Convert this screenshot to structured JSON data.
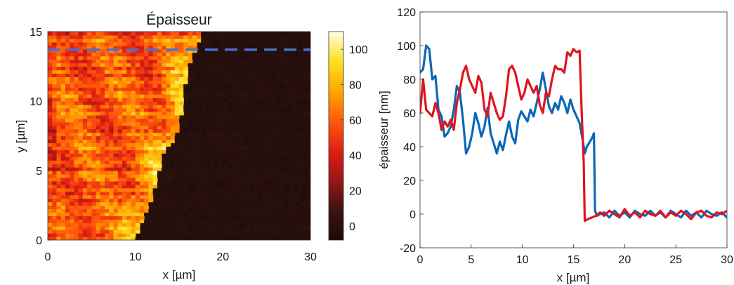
{
  "chart_data": [
    {
      "type": "heatmap",
      "title": "Épaisseur",
      "xlabel": "x [µm]",
      "ylabel": "y [µm]",
      "xlim": [
        0,
        30
      ],
      "ylim": [
        0,
        15
      ],
      "xticks": [
        "0",
        "10",
        "20",
        "30"
      ],
      "yticks": [
        "0",
        "5",
        "10",
        "15"
      ],
      "colorbar": {
        "min": -8,
        "max": 110,
        "ticks": [
          "0",
          "20",
          "40",
          "60",
          "80",
          "100"
        ]
      },
      "colormap": [
        "#1a0d0a",
        "#3b1410",
        "#9c1616",
        "#e01e12",
        "#ff5a0a",
        "#ffa600",
        "#ffdf20",
        "#ffffe8"
      ],
      "film_edge": [
        [
          10.0,
          0
        ],
        [
          11.0,
          1.5
        ],
        [
          12.2,
          3.5
        ],
        [
          13.0,
          5.5
        ],
        [
          13.5,
          6.8
        ],
        [
          14.1,
          6.9
        ],
        [
          14.6,
          7.4
        ],
        [
          15.1,
          8.5
        ],
        [
          15.5,
          10.0
        ],
        [
          15.8,
          11.5
        ],
        [
          16.4,
          13.0
        ],
        [
          17.2,
          14.3
        ],
        [
          17.7,
          15.0
        ]
      ],
      "profile_line": {
        "y": 13.7,
        "color": "#4a6fd0"
      }
    },
    {
      "type": "line",
      "xlabel": "x [µm]",
      "ylabel": "épaisseur [nm]",
      "xlim": [
        0,
        30
      ],
      "ylim": [
        -20,
        120
      ],
      "xticks": [
        "0",
        "5",
        "10",
        "15",
        "20",
        "25",
        "30"
      ],
      "yticks": [
        "-20",
        "0",
        "20",
        "40",
        "60",
        "80",
        "100",
        "120"
      ],
      "grid": false,
      "series": [
        {
          "color": "#0a68b8",
          "x": [
            0,
            0.3,
            0.6,
            0.9,
            1.2,
            1.5,
            1.8,
            2.1,
            2.4,
            2.7,
            3.0,
            3.3,
            3.6,
            3.9,
            4.2,
            4.5,
            4.8,
            5.1,
            5.4,
            5.7,
            6.0,
            6.3,
            6.6,
            6.9,
            7.2,
            7.5,
            7.8,
            8.1,
            8.4,
            8.7,
            9.0,
            9.3,
            9.6,
            9.9,
            10.2,
            10.5,
            10.8,
            11.1,
            11.4,
            11.7,
            12.0,
            12.3,
            12.6,
            12.9,
            13.2,
            13.5,
            13.8,
            14.1,
            14.4,
            14.7,
            15.0,
            15.3,
            15.6,
            15.9,
            16.1,
            16.3,
            16.5,
            16.8,
            17.0,
            17.1,
            17.3,
            17.6,
            18.0,
            18.5,
            19.0,
            19.5,
            20.0,
            20.5,
            21.0,
            21.5,
            22.0,
            22.5,
            23.0,
            23.5,
            24.0,
            24.5,
            25.0,
            25.5,
            26.0,
            26.5,
            27.0,
            27.5,
            28.0,
            28.5,
            29.0,
            29.5,
            30.0
          ],
          "y": [
            84,
            86,
            100,
            98,
            80,
            82,
            62,
            58,
            46,
            48,
            52,
            62,
            76,
            72,
            56,
            36,
            40,
            48,
            60,
            54,
            46,
            52,
            63,
            48,
            42,
            36,
            43,
            38,
            47,
            55,
            46,
            42,
            56,
            61,
            58,
            55,
            62,
            58,
            66,
            74,
            84,
            74,
            64,
            60,
            66,
            62,
            70,
            66,
            60,
            68,
            62,
            58,
            54,
            44,
            36,
            40,
            42,
            45,
            48,
            2,
            -1,
            0,
            1,
            -2,
            2,
            -1,
            1,
            -2,
            2,
            0,
            -1,
            2,
            -1,
            1,
            -2,
            2,
            0,
            -2,
            2,
            -1,
            1,
            -2,
            2,
            0,
            -1,
            1,
            -2
          ]
        },
        {
          "color": "#e0141e",
          "x": [
            0,
            0.3,
            0.6,
            0.9,
            1.2,
            1.5,
            1.8,
            2.1,
            2.4,
            2.7,
            3.0,
            3.3,
            3.6,
            3.9,
            4.2,
            4.5,
            4.8,
            5.1,
            5.4,
            5.7,
            6.0,
            6.3,
            6.6,
            6.9,
            7.2,
            7.5,
            7.8,
            8.1,
            8.4,
            8.7,
            9.0,
            9.3,
            9.6,
            9.9,
            10.2,
            10.5,
            10.8,
            11.1,
            11.4,
            11.7,
            12.0,
            12.3,
            12.6,
            12.9,
            13.2,
            13.5,
            13.8,
            14.1,
            14.4,
            14.7,
            15.0,
            15.3,
            15.6,
            15.8,
            16.0,
            16.1,
            16.4,
            16.8,
            17.2,
            17.6,
            18.0,
            18.5,
            19.0,
            19.5,
            20.0,
            20.5,
            21.0,
            21.5,
            22.0,
            22.5,
            23.0,
            23.5,
            24.0,
            24.5,
            25.0,
            25.5,
            26.0,
            26.5,
            27.0,
            27.5,
            28.0,
            28.5,
            29.0,
            29.5,
            30.0
          ],
          "y": [
            60,
            80,
            62,
            60,
            58,
            66,
            60,
            50,
            55,
            52,
            56,
            50,
            66,
            74,
            84,
            88,
            80,
            76,
            72,
            82,
            78,
            62,
            58,
            72,
            66,
            60,
            56,
            58,
            70,
            86,
            88,
            84,
            76,
            68,
            72,
            80,
            76,
            72,
            76,
            65,
            60,
            72,
            70,
            80,
            88,
            86,
            86,
            84,
            96,
            94,
            98,
            96,
            97,
            60,
            30,
            -4,
            -3,
            -2,
            -1,
            1,
            -1,
            2,
            0,
            -2,
            3,
            -1,
            1,
            -2,
            2,
            0,
            -1,
            2,
            -2,
            1,
            -1,
            2,
            0,
            -3,
            1,
            2,
            -1,
            -2,
            1,
            0,
            2
          ]
        }
      ]
    }
  ]
}
